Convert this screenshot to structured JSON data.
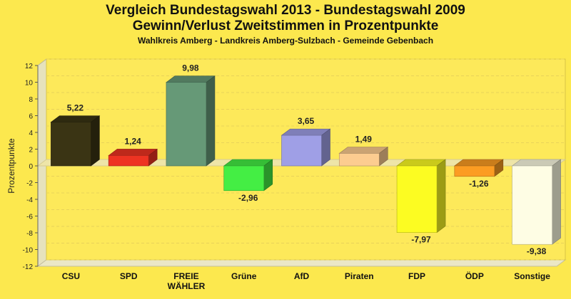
{
  "chart_data": {
    "type": "bar",
    "title": "Vergleich Bundestagswahl 2013 - Bundestagswahl 2009",
    "title2": "Gewinn/Verlust Zweitstimmen in Prozentpunkte",
    "subtitle": "Wahlkreis Amberg - Landkreis Amberg-Sulzbach - Gemeinde Gebenbach",
    "ylabel": "Prozentpunkte",
    "xlabel": "",
    "ylim": [
      -12,
      12
    ],
    "yticks": [
      12,
      10,
      8,
      6,
      4,
      2,
      0,
      -2,
      -4,
      -6,
      -8,
      -10,
      -12
    ],
    "categories": [
      "CSU",
      "SPD",
      "FREIE WÄHLER",
      "Grüne",
      "AfD",
      "Piraten",
      "FDP",
      "ÖDP",
      "Sonstige"
    ],
    "values": [
      5.22,
      1.24,
      9.98,
      -2.96,
      3.65,
      1.49,
      -7.97,
      -1.26,
      -9.38
    ],
    "value_labels": [
      "5,22",
      "1,24",
      "9,98",
      "-2,96",
      "3,65",
      "1,49",
      "-7,97",
      "-1,26",
      "-9,38"
    ],
    "colors": [
      "#3a3414",
      "#ee3322",
      "#669977",
      "#44ee44",
      "#9f9fe6",
      "#fccc90",
      "#fcfc22",
      "#fc9c22",
      "#fefde4"
    ],
    "grid": true
  }
}
